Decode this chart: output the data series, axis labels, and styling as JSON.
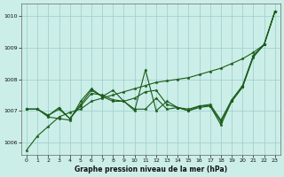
{
  "xlabel": "Graphe pression niveau de la mer (hPa)",
  "xlim": [
    -0.5,
    23.5
  ],
  "ylim": [
    1005.6,
    1010.4
  ],
  "yticks": [
    1006,
    1007,
    1008,
    1009,
    1010
  ],
  "xticks": [
    0,
    1,
    2,
    3,
    4,
    5,
    6,
    7,
    8,
    9,
    10,
    11,
    12,
    13,
    14,
    15,
    16,
    17,
    18,
    19,
    20,
    21,
    22,
    23
  ],
  "bg_color": "#cceee8",
  "grid_color": "#99cccc",
  "line_color": "#1a5c1a",
  "s1": [
    1005.75,
    1006.2,
    1006.5,
    1006.8,
    1006.95,
    1007.05,
    1007.3,
    1007.4,
    1007.5,
    1007.6,
    1007.7,
    1007.8,
    1007.9,
    1007.95,
    1008.0,
    1008.05,
    1008.15,
    1008.25,
    1008.35,
    1008.5,
    1008.65,
    1008.85,
    1009.1,
    1010.15
  ],
  "s2": [
    1007.05,
    1007.05,
    1006.8,
    1006.75,
    1006.7,
    1007.3,
    1007.7,
    1007.45,
    1007.65,
    1007.3,
    1007.0,
    1008.3,
    1007.0,
    1007.3,
    1007.1,
    1007.0,
    1007.15,
    1007.15,
    1006.65,
    1007.3,
    1007.75,
    1008.75,
    1009.1,
    1010.15
  ],
  "s3": [
    1007.05,
    1007.05,
    1006.85,
    1007.1,
    1006.75,
    1007.2,
    1007.65,
    1007.45,
    1007.3,
    1007.3,
    1007.4,
    1007.6,
    1007.65,
    1007.2,
    1007.1,
    1007.05,
    1007.15,
    1007.2,
    1006.7,
    1007.35,
    1007.8,
    1008.75,
    1009.1,
    1010.15
  ],
  "s4": [
    1007.05,
    1007.05,
    1006.85,
    1007.05,
    1006.75,
    1007.15,
    1007.55,
    1007.5,
    1007.35,
    1007.3,
    1007.05,
    1007.05,
    1007.4,
    1007.05,
    1007.1,
    1007.0,
    1007.1,
    1007.15,
    1006.55,
    1007.3,
    1007.75,
    1008.7,
    1009.1,
    1010.15
  ],
  "linewidth": 0.8,
  "markersize": 2.5
}
